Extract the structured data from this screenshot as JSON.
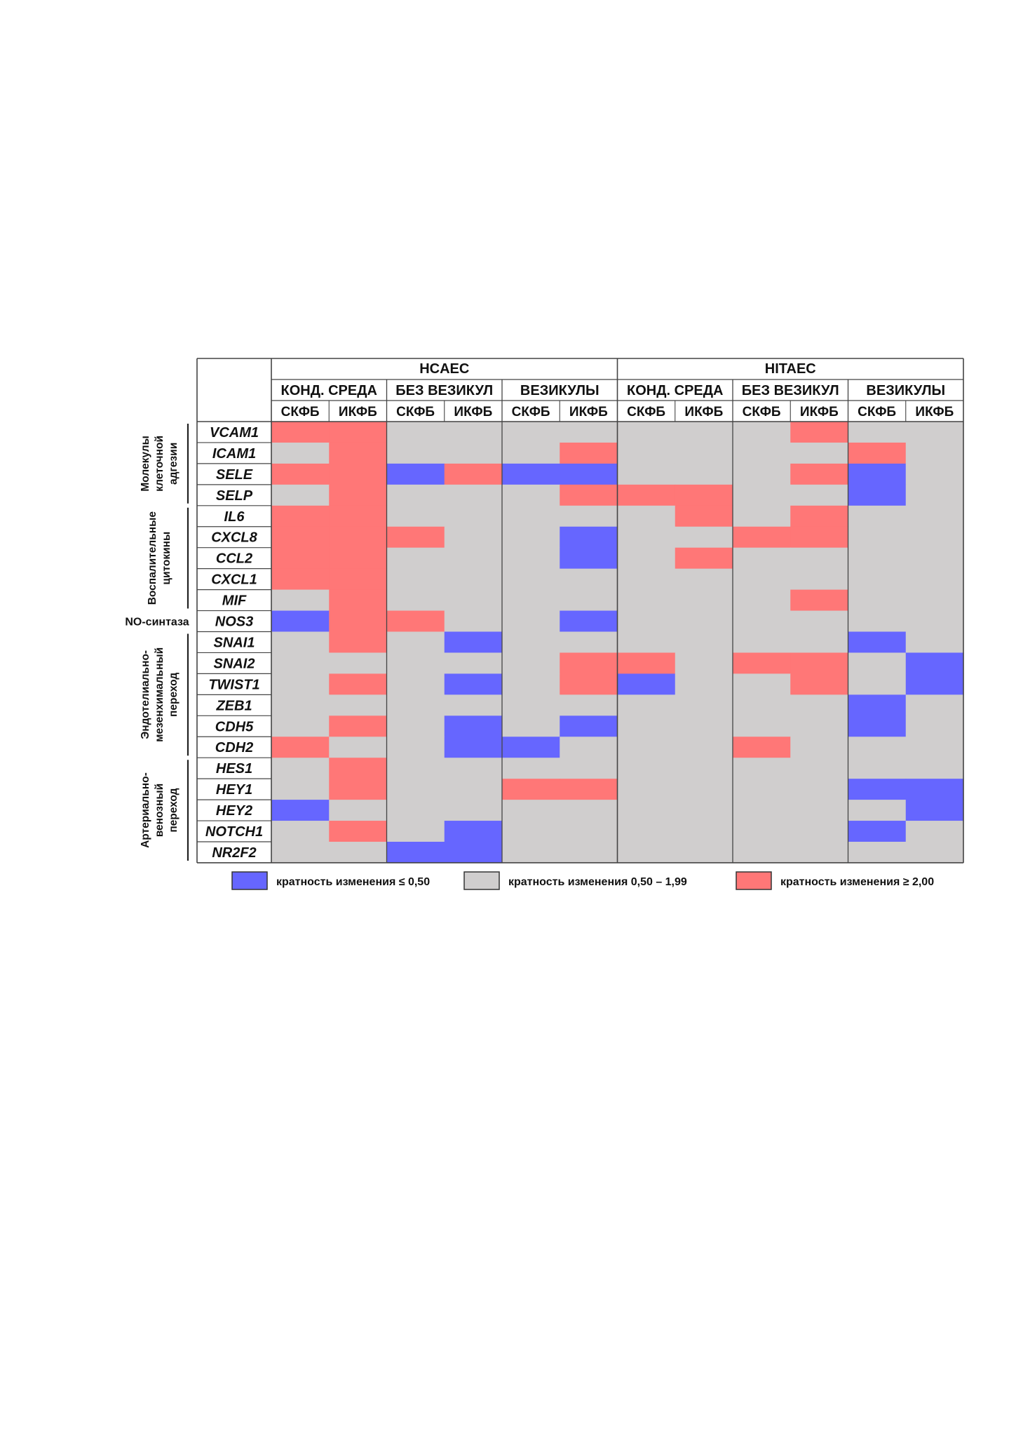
{
  "chart_data": {
    "type": "heatmap",
    "title": "",
    "cell_lines": [
      "HCAEC",
      "HITAEC"
    ],
    "conditions": [
      "КОНД. СРЕДА",
      "БЕЗ ВЕЗИКУЛ",
      "ВЕЗИКУЛЫ"
    ],
    "sub_columns": [
      "СКФБ",
      "ИКФБ"
    ],
    "genes": [
      "VCAM1",
      "ICAM1",
      "SELE",
      "SELP",
      "IL6",
      "CXCL8",
      "CCL2",
      "CXCL1",
      "MIF",
      "NOS3",
      "SNAI1",
      "SNAI2",
      "TWIST1",
      "ZEB1",
      "CDH5",
      "CDH2",
      "HES1",
      "HEY1",
      "HEY2",
      "NOTCH1",
      "NR2F2"
    ],
    "groups": [
      {
        "lines": [
          "Молекулы",
          "клеточной",
          "адгезии"
        ],
        "start": 0,
        "end": 3,
        "orientation": "vertical"
      },
      {
        "lines": [
          "Воспалительные",
          "цитокины"
        ],
        "start": 4,
        "end": 8,
        "orientation": "vertical"
      },
      {
        "lines": [
          "NO-синтаза"
        ],
        "start": 9,
        "end": 9,
        "orientation": "horizontal"
      },
      {
        "lines": [
          "Эндотелиально-",
          "мезенхимальный",
          "переход"
        ],
        "start": 10,
        "end": 15,
        "orientation": "vertical"
      },
      {
        "lines": [
          "Артериально-",
          "венозный",
          "переход"
        ],
        "start": 16,
        "end": 20,
        "orientation": "vertical"
      }
    ],
    "values": [
      [
        1,
        1,
        0,
        0,
        0,
        0,
        0,
        0,
        0,
        1,
        0,
        0
      ],
      [
        0,
        1,
        0,
        0,
        0,
        1,
        0,
        0,
        0,
        0,
        1,
        0
      ],
      [
        1,
        1,
        -1,
        1,
        -1,
        -1,
        0,
        0,
        0,
        1,
        -1,
        0
      ],
      [
        0,
        1,
        0,
        0,
        0,
        1,
        1,
        1,
        0,
        0,
        -1,
        0
      ],
      [
        1,
        1,
        0,
        0,
        0,
        0,
        0,
        1,
        0,
        1,
        0,
        0
      ],
      [
        1,
        1,
        1,
        0,
        0,
        -1,
        0,
        0,
        1,
        1,
        0,
        0
      ],
      [
        1,
        1,
        0,
        0,
        0,
        -1,
        0,
        1,
        0,
        0,
        0,
        0
      ],
      [
        1,
        1,
        0,
        0,
        0,
        0,
        0,
        0,
        0,
        0,
        0,
        0
      ],
      [
        0,
        1,
        0,
        0,
        0,
        0,
        0,
        0,
        0,
        1,
        0,
        0
      ],
      [
        -1,
        1,
        1,
        0,
        0,
        -1,
        0,
        0,
        0,
        0,
        0,
        0
      ],
      [
        0,
        1,
        0,
        -1,
        0,
        0,
        0,
        0,
        0,
        0,
        -1,
        0
      ],
      [
        0,
        0,
        0,
        0,
        0,
        1,
        1,
        0,
        1,
        1,
        0,
        -1
      ],
      [
        0,
        1,
        0,
        -1,
        0,
        1,
        -1,
        0,
        0,
        1,
        0,
        -1
      ],
      [
        0,
        0,
        0,
        0,
        0,
        0,
        0,
        0,
        0,
        0,
        -1,
        0
      ],
      [
        0,
        1,
        0,
        -1,
        0,
        -1,
        0,
        0,
        0,
        0,
        -1,
        0
      ],
      [
        1,
        0,
        0,
        -1,
        -1,
        0,
        0,
        0,
        1,
        0,
        0,
        0
      ],
      [
        0,
        1,
        0,
        0,
        0,
        0,
        0,
        0,
        0,
        0,
        0,
        0
      ],
      [
        0,
        1,
        0,
        0,
        1,
        1,
        0,
        0,
        0,
        0,
        -1,
        -1
      ],
      [
        -1,
        0,
        0,
        0,
        0,
        0,
        0,
        0,
        0,
        0,
        0,
        -1
      ],
      [
        0,
        1,
        0,
        -1,
        0,
        0,
        0,
        0,
        0,
        0,
        -1,
        0
      ],
      [
        0,
        0,
        -1,
        -1,
        0,
        0,
        0,
        0,
        0,
        0,
        0,
        0
      ]
    ],
    "value_codes": {
      "-1": "кратность изменения ≤ 0,50",
      "0": "кратность изменения 0,50 – 1,99",
      "1": "кратность изменения ≥ 2,00"
    },
    "legend": [
      {
        "code": -1,
        "label": "кратность изменения ≤ 0,50",
        "color": "#6666ff"
      },
      {
        "code": 0,
        "label": "кратность изменения 0,50 – 1,99",
        "color": "#d0cece"
      },
      {
        "code": 1,
        "label": "кратность изменения ≥ 2,00",
        "color": "#ff7777"
      }
    ],
    "legend_placement": "bottom",
    "colors": {
      "down": "#6666ff",
      "neutral": "#d0cece",
      "up": "#ff7777"
    }
  }
}
